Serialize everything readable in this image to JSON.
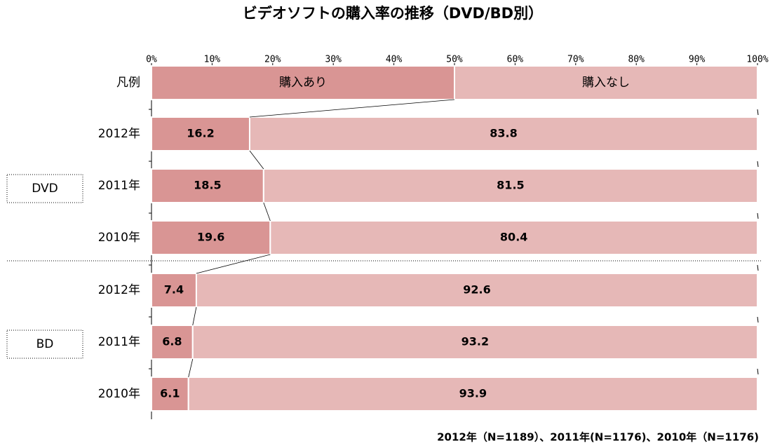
{
  "chart_data": {
    "type": "stacked_bar_horizontal",
    "title": "ビデオソフトの購入率の推移（DVD/BD別）",
    "legend_label": "凡例",
    "categories": [
      "2012年",
      "2011年",
      "2010年",
      "2012年",
      "2011年",
      "2010年"
    ],
    "groups": [
      {
        "name": "DVD",
        "rows": [
          0,
          1,
          2
        ]
      },
      {
        "name": "BD",
        "rows": [
          3,
          4,
          5
        ]
      }
    ],
    "series": [
      {
        "name": "購入あり",
        "color": "#d99594",
        "values": [
          16.2,
          18.5,
          19.6,
          7.4,
          6.8,
          6.1
        ]
      },
      {
        "name": "購入なし",
        "color": "#e6b8b7",
        "values": [
          83.8,
          81.5,
          80.4,
          92.6,
          93.2,
          93.9
        ]
      }
    ],
    "xlim": [
      0,
      100
    ],
    "xticks": [
      {
        "value": 0,
        "label": "0%"
      },
      {
        "value": 10,
        "label": "10%"
      },
      {
        "value": 20,
        "label": "20%"
      },
      {
        "value": 30,
        "label": "30%"
      },
      {
        "value": 40,
        "label": "40%"
      },
      {
        "value": 50,
        "label": "50%"
      },
      {
        "value": 60,
        "label": "60%"
      },
      {
        "value": 70,
        "label": "70%"
      },
      {
        "value": 80,
        "label": "80%"
      },
      {
        "value": 90,
        "label": "90%"
      },
      {
        "value": 100,
        "label": "100%"
      }
    ],
    "note": "2012年（N=1189）、2011年(N=1176)、2010年（N=1176)"
  }
}
